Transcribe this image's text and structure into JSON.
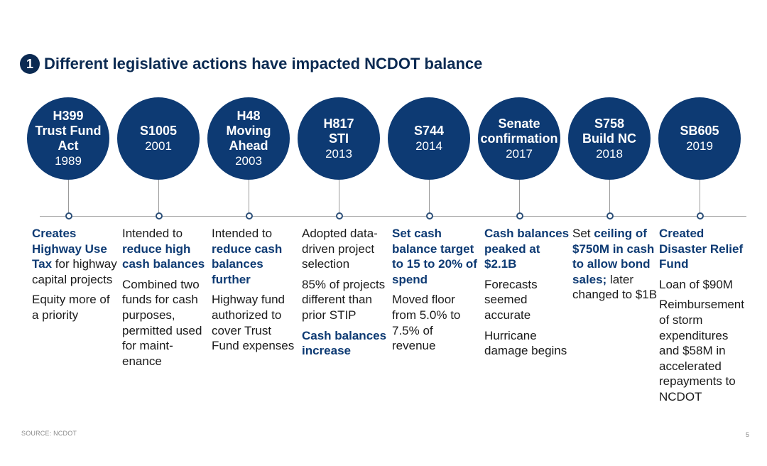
{
  "header": {
    "badge": "1",
    "title": "Different legislative actions have impacted NCDOT balance"
  },
  "colors": {
    "accent": "#0d3a73",
    "title": "#0b2a52"
  },
  "timeline": [
    {
      "name": "H399\nTrust Fund\nAct",
      "year": "1989",
      "paras": [
        [
          {
            "t": "Creates Highway Use Tax",
            "h": true
          },
          {
            "t": " for highway capital projects",
            "h": false
          }
        ],
        [
          {
            "t": "Equity more of a priority",
            "h": false
          }
        ]
      ]
    },
    {
      "name": "S1005",
      "year": "2001",
      "paras": [
        [
          {
            "t": "Intended to ",
            "h": false
          },
          {
            "t": "reduce high cash balances",
            "h": true
          }
        ],
        [
          {
            "t": "Combined two funds for cash purposes, permitted used for maint-enance",
            "h": false
          }
        ]
      ]
    },
    {
      "name": "H48\nMoving\nAhead",
      "year": "2003",
      "paras": [
        [
          {
            "t": "Intended to ",
            "h": false
          },
          {
            "t": "reduce cash balances further",
            "h": true
          }
        ],
        [
          {
            "t": "Highway fund authorized to cover Trust Fund expenses",
            "h": false
          }
        ]
      ]
    },
    {
      "name": "H817\nSTI",
      "year": "2013",
      "paras": [
        [
          {
            "t": "Adopted data-driven project selection",
            "h": false
          }
        ],
        [
          {
            "t": "85% of projects different than prior STIP",
            "h": false
          }
        ],
        [
          {
            "t": "Cash balances increase",
            "h": true
          }
        ]
      ]
    },
    {
      "name": "S744",
      "year": "2014",
      "paras": [
        [
          {
            "t": "Set cash balance target to 15 to 20% of spend",
            "h": true
          }
        ],
        [
          {
            "t": "Moved floor from 5.0% to 7.5% of revenue",
            "h": false
          }
        ]
      ]
    },
    {
      "name": "Senate\nconfirmation",
      "year": "2017",
      "paras": [
        [
          {
            "t": "Cash balances peaked at $2.1B",
            "h": true
          }
        ],
        [
          {
            "t": "Forecasts seemed accurate",
            "h": false
          }
        ],
        [
          {
            "t": "Hurricane damage begins",
            "h": false
          }
        ]
      ]
    },
    {
      "name": "S758\nBuild NC",
      "year": "2018",
      "paras": [
        [
          {
            "t": "Set ",
            "h": false
          },
          {
            "t": "ceiling of $750M in cash to allow bond sales;",
            "h": true
          },
          {
            "t": " later changed to $1B",
            "h": false
          }
        ]
      ]
    },
    {
      "name": "SB605",
      "year": "2019",
      "paras": [
        [
          {
            "t": "Created Disaster Relief Fund",
            "h": true
          }
        ],
        [
          {
            "t": "Loan of $90M",
            "h": false
          }
        ],
        [
          {
            "t": "Reimbursement of storm expenditures and $58M in accelerated repayments to NCDOT",
            "h": false
          }
        ]
      ]
    }
  ],
  "footer": {
    "source": "SOURCE: NCDOT",
    "page": "5"
  }
}
